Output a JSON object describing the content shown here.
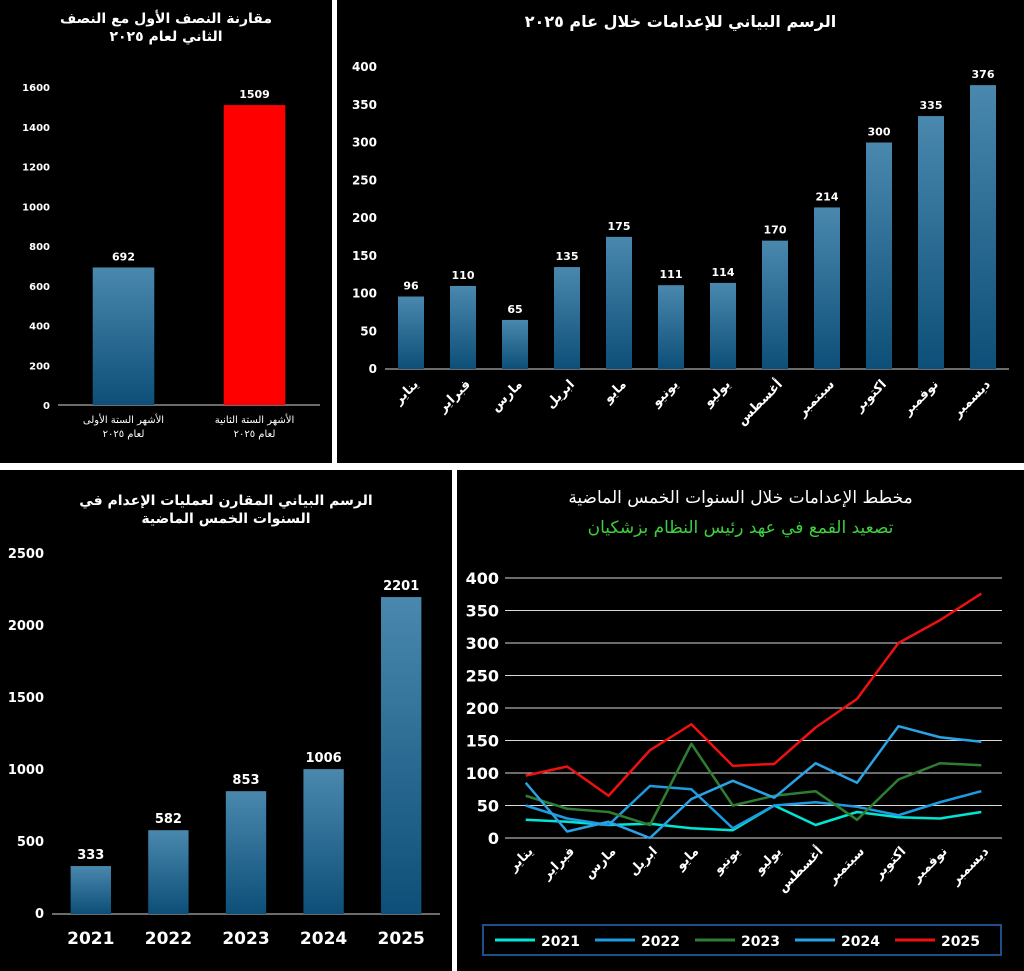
{
  "chart_data": [
    {
      "type": "bar",
      "title": "مقارنة النصف الأول مع النصف الثاني لعام ٢٠٢٥",
      "categories": [
        "الأشهر الستة الأولى لعام ٢٠٢٥",
        "الأشهر الستة الثانية لعام ٢٠٢٥"
      ],
      "category_lines": [
        [
          "الأشهر الستة الأولى",
          "لعام ٢٠٢٥"
        ],
        [
          "الأشهر الستة الثانية",
          "لعام ٢٠٢٥"
        ]
      ],
      "values": [
        692,
        1509
      ],
      "bar_colors": [
        "#2f6f95",
        "#ff0000"
      ],
      "ylim": [
        0,
        1600
      ],
      "yticks": [
        0,
        200,
        400,
        600,
        800,
        1000,
        1200,
        1400,
        1600
      ],
      "grid": false
    },
    {
      "type": "bar",
      "title": "الرسم البياني للإعدامات خلال عام ٢٠٢٥",
      "categories": [
        "يناير",
        "فبراير",
        "مارس",
        "ابريل",
        "مايو",
        "يونيو",
        "يوليو",
        "أغسطس",
        "سبتمبر",
        "اكتوبر",
        "نوفمبر",
        "ديسمبر"
      ],
      "values": [
        96,
        110,
        65,
        135,
        175,
        111,
        114,
        170,
        214,
        300,
        335,
        376
      ],
      "ylim": [
        0,
        400
      ],
      "yticks": [
        0,
        50,
        100,
        150,
        200,
        250,
        300,
        350,
        400
      ],
      "grid": false
    },
    {
      "type": "bar",
      "title": "الرسم البياني المقارن لعمليات الإعدام في السنوات الخمس الماضية",
      "categories": [
        "2021",
        "2022",
        "2023",
        "2024",
        "2025"
      ],
      "values": [
        333,
        582,
        853,
        1006,
        2201
      ],
      "ylim": [
        0,
        2500
      ],
      "yticks": [
        0,
        500,
        1000,
        1500,
        2000,
        2500
      ],
      "grid": false
    },
    {
      "type": "line",
      "title": "مخطط الإعدامات خلال السنوات الخمس الماضية",
      "subtitle": "تصعيد القمع في عهد رئيس النظام بزشكيان",
      "categories": [
        "يناير",
        "فبراير",
        "مارس",
        "ابريل",
        "مايو",
        "يونيو",
        "يوليو",
        "أغسطس",
        "سبتمبر",
        "اكتوبر",
        "نوفمبر",
        "ديسمبر"
      ],
      "ylim": [
        0,
        400
      ],
      "yticks": [
        0,
        50,
        100,
        150,
        200,
        250,
        300,
        350,
        400
      ],
      "grid": true,
      "legend": "bottom",
      "series": [
        {
          "name": "2021",
          "color": "#00e5d4",
          "values": [
            28,
            25,
            20,
            22,
            15,
            12,
            50,
            20,
            40,
            32,
            30,
            40
          ]
        },
        {
          "name": "2022",
          "color": "#1e9be0",
          "values": [
            50,
            30,
            20,
            80,
            75,
            15,
            50,
            55,
            48,
            35,
            55,
            72
          ]
        },
        {
          "name": "2023",
          "color": "#2e7d32",
          "values": [
            65,
            45,
            40,
            20,
            145,
            50,
            65,
            72,
            28,
            90,
            115,
            112
          ]
        },
        {
          "name": "2024",
          "color": "#29a3e6",
          "values": [
            85,
            10,
            25,
            0,
            60,
            88,
            62,
            115,
            85,
            172,
            155,
            148
          ]
        },
        {
          "name": "2025",
          "color": "#ee1111",
          "values": [
            96,
            110,
            65,
            135,
            175,
            111,
            114,
            170,
            214,
            300,
            335,
            376
          ]
        }
      ]
    }
  ]
}
